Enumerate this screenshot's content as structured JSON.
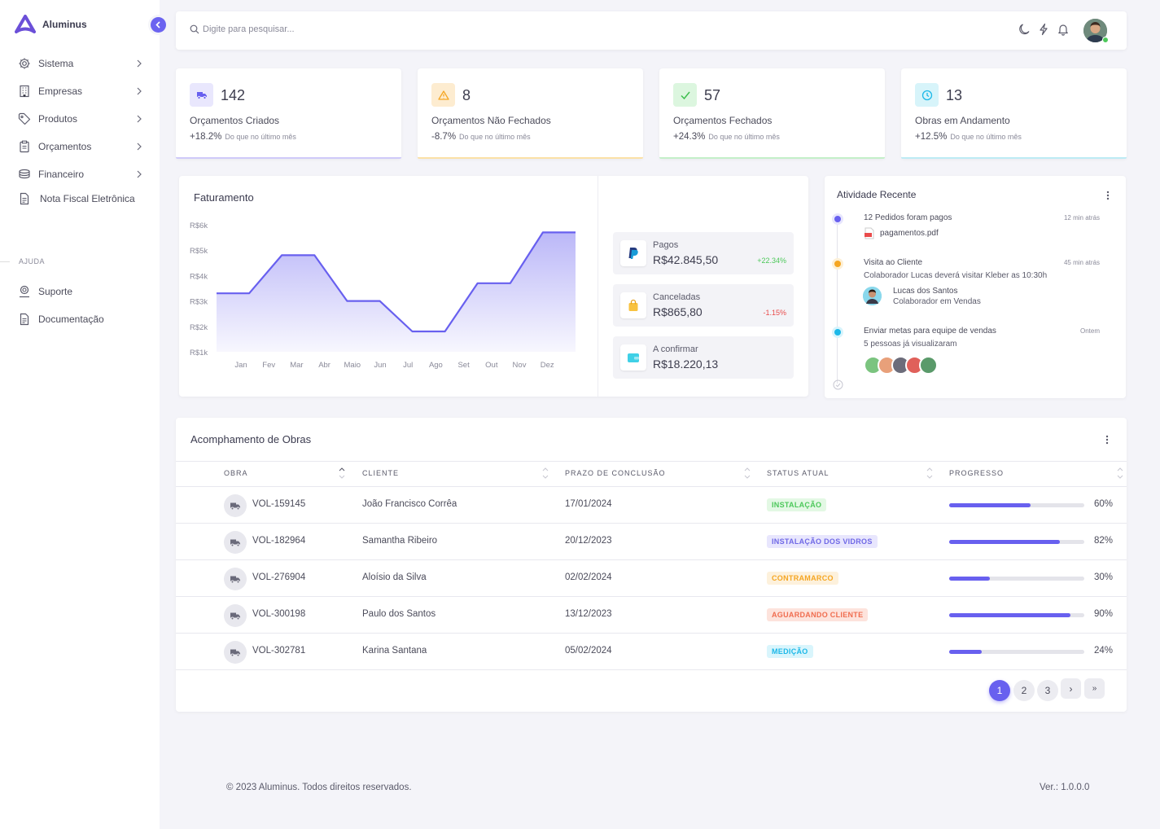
{
  "brand": {
    "name": "Aluminus"
  },
  "sidebar": {
    "items": [
      {
        "label": "Sistema",
        "icon": "gear-icon"
      },
      {
        "label": "Empresas",
        "icon": "building-icon"
      },
      {
        "label": "Produtos",
        "icon": "tag-icon"
      },
      {
        "label": "Orçamentos",
        "icon": "clipboard-icon"
      },
      {
        "label": "Financeiro",
        "icon": "money-icon"
      },
      {
        "label": "Nota Fiscal Eletrônica",
        "icon": "document-icon"
      }
    ],
    "help_title": "AJUDA",
    "help_items": [
      {
        "label": "Suporte",
        "icon": "support-icon"
      },
      {
        "label": "Documentação",
        "icon": "document-icon"
      }
    ]
  },
  "search": {
    "placeholder": "Digite para pesquisar..."
  },
  "stats": [
    {
      "value": "142",
      "label": "Orçamentos Criados",
      "change": "+18.2%",
      "note": "Do que no último mês",
      "icon": "truck-icon",
      "color": "#6860ef"
    },
    {
      "value": "8",
      "label": "Orçamentos Não Fechados",
      "change": "-8.7%",
      "note": "Do que no último mês",
      "icon": "warning-icon",
      "color": "#f5b43a"
    },
    {
      "value": "57",
      "label": "Orçamentos Fechados",
      "change": "+24.3%",
      "note": "Do que no último mês",
      "icon": "check-icon",
      "color": "#5bd36a"
    },
    {
      "value": "13",
      "label": "Obras em Andamento",
      "change": "+12.5%",
      "note": "Do que no último mês",
      "icon": "clock-icon",
      "color": "#2cc6e0"
    }
  ],
  "revenue": {
    "title": "Faturamento",
    "payments": [
      {
        "label": "Pagos",
        "value": "R$42.845,50",
        "change": "+22.34%",
        "icon": "paypal-icon",
        "color": "#4cc85a"
      },
      {
        "label": "Canceladas",
        "value": "R$865,80",
        "change": "-1.15%",
        "icon": "bag-icon",
        "color": "#e94b4b"
      },
      {
        "label": "A confirmar",
        "value": "R$18.220,13",
        "change": "",
        "icon": "wallet-icon",
        "color": ""
      }
    ]
  },
  "chart_data": {
    "type": "area",
    "categories": [
      "Jan",
      "Fev",
      "Mar",
      "Abr",
      "Maio",
      "Jun",
      "Jul",
      "Ago",
      "Set",
      "Out",
      "Nov",
      "Dez"
    ],
    "values": [
      3.3,
      3.3,
      4.8,
      4.8,
      3.0,
      3.0,
      1.8,
      1.8,
      3.7,
      3.7,
      5.7,
      5.7
    ],
    "ytick_labels": [
      "R$6k",
      "R$5k",
      "R$4k",
      "R$3k",
      "R$2k",
      "R$1k"
    ],
    "ylim": [
      1,
      6
    ],
    "color": "#6860ef"
  },
  "activity": {
    "title": "Atividade Recente",
    "items": [
      {
        "title": "12 Pedidos foram pagos",
        "time": "12 min atrás",
        "file": "pagamentos.pdf",
        "color": "#6860ef"
      },
      {
        "title": "Visita ao Cliente",
        "time": "45 min atrás",
        "desc": "Colaborador Lucas deverá visitar Kleber as 10:30h",
        "person_name": "Lucas dos Santos",
        "person_role": "Colaborador em Vendas",
        "color": "#f5a623"
      },
      {
        "title": "Enviar metas para equipe de vendas",
        "time": "Ontem",
        "desc": "5 pessoas já visualizaram",
        "color": "#1cb8e8"
      }
    ]
  },
  "works": {
    "title": "Acomphamento de Obras",
    "headers": [
      "OBRA",
      "CLIENTE",
      "PRAZO DE CONCLUSÃO",
      "STATUS ATUAL",
      "PROGRESSO"
    ],
    "rows": [
      {
        "id": "VOL-159145",
        "client": "João Francisco Corrêa",
        "date": "17/01/2024",
        "status": "INSTALAÇÃO",
        "status_fg": "#4cc85a",
        "status_bg": "#e3f8e4",
        "progress": 60,
        "progress_label": "60%"
      },
      {
        "id": "VOL-182964",
        "client": "Samantha Ribeiro",
        "date": "20/12/2023",
        "status": "INSTALAÇÃO DOS VIDROS",
        "status_fg": "#6f68e6",
        "status_bg": "#e8e6fd",
        "progress": 82,
        "progress_label": "82%"
      },
      {
        "id": "VOL-276904",
        "client": "Aloísio da Silva",
        "date": "02/02/2024",
        "status": "CONTRAMARCO",
        "status_fg": "#f5a623",
        "status_bg": "#fdf1dc",
        "progress": 30,
        "progress_label": "30%"
      },
      {
        "id": "VOL-300198",
        "client": "Paulo dos Santos",
        "date": "13/12/2023",
        "status": "AGUARDANDO CLIENTE",
        "status_fg": "#f06d4f",
        "status_bg": "#fde3dc",
        "progress": 90,
        "progress_label": "90%"
      },
      {
        "id": "VOL-302781",
        "client": "Karina Santana",
        "date": "05/02/2024",
        "status": "MEDIÇÃO",
        "status_fg": "#1cb8e8",
        "status_bg": "#d9f5fc",
        "progress": 24,
        "progress_label": "24%"
      }
    ],
    "pages": [
      "1",
      "2",
      "3"
    ],
    "next": "›",
    "last": "»"
  },
  "footer": {
    "copyright": "© 2023 Aluminus. Todos direitos reservados.",
    "version": "Ver.: 1.0.0.0"
  }
}
